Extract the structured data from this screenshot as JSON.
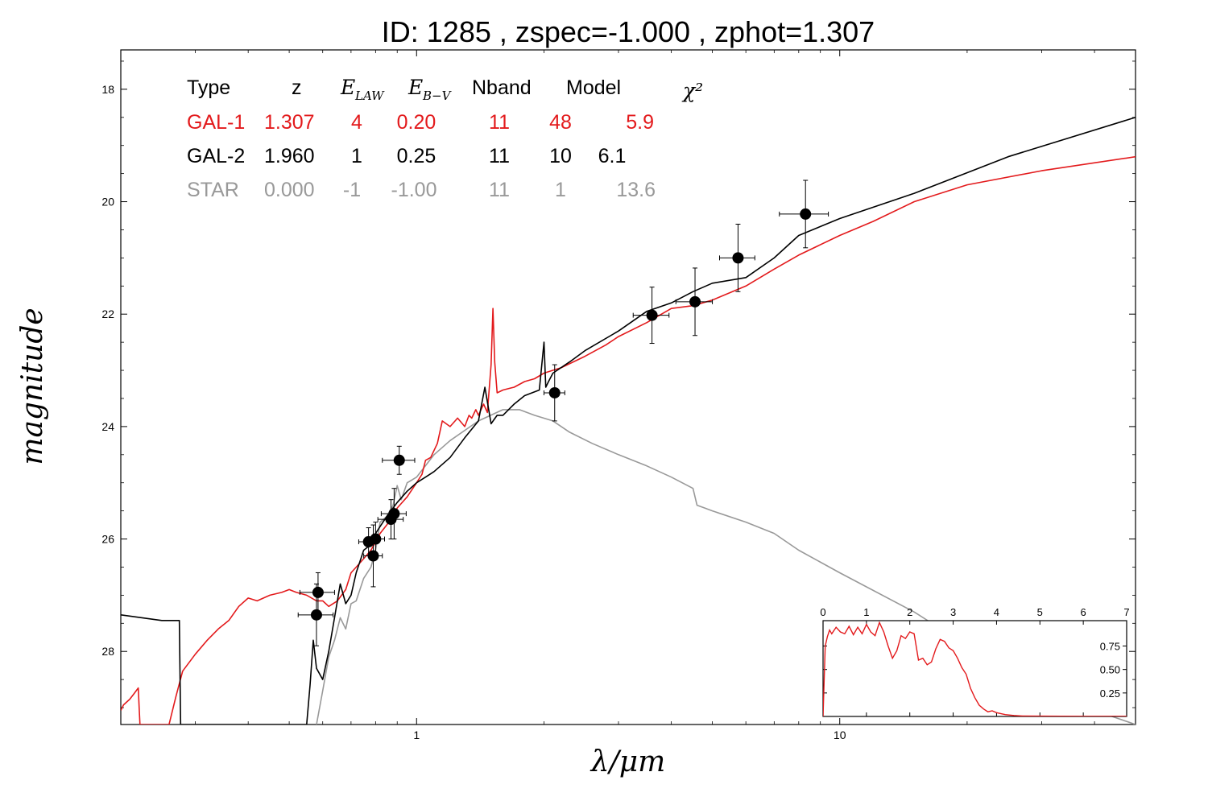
{
  "colors": {
    "gal1": "#e31a1c",
    "gal2": "#000000",
    "star": "#999999",
    "points": "#000000",
    "frame": "#000000"
  },
  "chart_data": [
    {
      "type": "line",
      "title": "ID:  1285  , zspec=-1.000 , zphot=1.307",
      "xlabel": "λ/μm",
      "ylabel": "magnitude",
      "x_scale": "log",
      "xlim": [
        0.2,
        50
      ],
      "ylim": [
        29.3,
        17.3
      ],
      "y_inverted": true,
      "grid": false,
      "x_ticks": [
        1,
        10
      ],
      "x_tick_labels": [
        "1",
        "10"
      ],
      "y_ticks": [
        18,
        20,
        22,
        24,
        26,
        28
      ],
      "y_tick_labels": [
        "18",
        "20",
        "22",
        "24",
        "26",
        "28"
      ],
      "legend_table": {
        "placement": "top-left",
        "headers": [
          "Type",
          "z",
          "E_LAW",
          "E_B-V",
          "Nband",
          "Model",
          "χ²"
        ],
        "rows": [
          {
            "cells": [
              "GAL-1",
              "1.307",
              "4",
              "0.20",
              "11",
              "48",
              "5.9"
            ],
            "color": "#e31a1c"
          },
          {
            "cells": [
              "GAL-2",
              "1.960",
              "1",
              "0.25",
              "11",
              "10",
              "6.1"
            ],
            "color": "#000000"
          },
          {
            "cells": [
              "STAR",
              "0.000",
              "-1",
              "-1.00",
              "11",
              "1",
              "13.6"
            ],
            "color": "#999999"
          }
        ]
      },
      "series": [
        {
          "key": "gal1",
          "color": "#e31a1c",
          "x": [
            0.2,
            0.203,
            0.21,
            0.215,
            0.22,
            0.221,
            0.222,
            0.26,
            0.27,
            0.28,
            0.3,
            0.32,
            0.34,
            0.36,
            0.38,
            0.4,
            0.42,
            0.45,
            0.48,
            0.5,
            0.52,
            0.55,
            0.58,
            0.6,
            0.62,
            0.65,
            0.68,
            0.7,
            0.72,
            0.75,
            0.78,
            0.8,
            0.82,
            0.85,
            0.88,
            0.9,
            0.95,
            1.0,
            1.03,
            1.05,
            1.08,
            1.12,
            1.15,
            1.2,
            1.25,
            1.3,
            1.33,
            1.35,
            1.38,
            1.4,
            1.44,
            1.47,
            1.5,
            1.515,
            1.53,
            1.55,
            1.6,
            1.7,
            1.8,
            1.9,
            2.0,
            2.2,
            2.5,
            2.8,
            3.0,
            3.5,
            4.0,
            4.5,
            5.0,
            6.0,
            7.0,
            8.0,
            10.0,
            12.0,
            15.0,
            20.0,
            30.0,
            50.0
          ],
          "y": [
            29.05,
            28.95,
            28.85,
            28.75,
            28.65,
            29.0,
            29.3,
            29.3,
            28.8,
            28.35,
            28.05,
            27.8,
            27.6,
            27.45,
            27.2,
            27.05,
            27.1,
            27.0,
            26.95,
            26.9,
            26.95,
            27.0,
            27.1,
            27.1,
            27.2,
            27.1,
            26.9,
            26.6,
            26.5,
            26.35,
            26.2,
            26.05,
            25.9,
            25.75,
            25.6,
            25.45,
            25.25,
            25.0,
            24.85,
            24.6,
            24.55,
            24.3,
            23.9,
            24.0,
            23.85,
            24.0,
            23.8,
            23.85,
            23.7,
            23.8,
            23.6,
            23.75,
            22.9,
            21.9,
            22.85,
            23.4,
            23.35,
            23.3,
            23.2,
            23.15,
            23.05,
            22.95,
            22.75,
            22.55,
            22.4,
            22.15,
            21.9,
            21.85,
            21.75,
            21.5,
            21.2,
            20.95,
            20.6,
            20.35,
            20.0,
            19.7,
            19.45,
            19.2
          ]
        },
        {
          "key": "gal2",
          "color": "#000000",
          "x": [
            0.2,
            0.25,
            0.27,
            0.275,
            0.277,
            0.55,
            0.56,
            0.57,
            0.58,
            0.6,
            0.62,
            0.64,
            0.66,
            0.68,
            0.7,
            0.72,
            0.75,
            0.78,
            0.8,
            0.85,
            0.9,
            0.95,
            1.0,
            1.05,
            1.1,
            1.2,
            1.3,
            1.4,
            1.45,
            1.5,
            1.55,
            1.6,
            1.7,
            1.8,
            1.95,
            2.0,
            2.02,
            2.05,
            2.1,
            2.3,
            2.5,
            3.0,
            3.5,
            4.0,
            4.5,
            5.0,
            6.0,
            7.0,
            8.0,
            10.0,
            15.0,
            25.0,
            50.0
          ],
          "y": [
            27.35,
            27.45,
            27.45,
            27.45,
            29.3,
            29.3,
            28.6,
            27.8,
            28.3,
            28.5,
            28.0,
            27.4,
            26.8,
            27.15,
            27.0,
            26.6,
            26.2,
            26.1,
            25.9,
            25.6,
            25.35,
            25.15,
            25.0,
            24.9,
            24.8,
            24.55,
            24.2,
            23.9,
            23.3,
            23.95,
            23.8,
            23.8,
            23.6,
            23.45,
            23.35,
            22.5,
            23.3,
            23.2,
            23.05,
            22.85,
            22.65,
            22.3,
            21.95,
            21.8,
            21.6,
            21.45,
            21.35,
            21.0,
            20.6,
            20.3,
            19.85,
            19.2,
            18.5
          ]
        },
        {
          "key": "star",
          "color": "#999999",
          "x": [
            0.58,
            0.6,
            0.62,
            0.64,
            0.66,
            0.68,
            0.7,
            0.72,
            0.75,
            0.78,
            0.8,
            0.82,
            0.85,
            0.88,
            0.9,
            0.92,
            0.95,
            1.0,
            1.1,
            1.2,
            1.4,
            1.6,
            1.75,
            1.9,
            2.1,
            2.3,
            2.6,
            3.0,
            3.5,
            4.0,
            4.5,
            4.6,
            4.8,
            5.0,
            6.0,
            7.0,
            8.0,
            10.0,
            15.0,
            20.0,
            30.0,
            40.0,
            50.0
          ],
          "y": [
            29.3,
            28.7,
            28.1,
            27.8,
            27.4,
            27.6,
            27.15,
            27.1,
            26.7,
            26.5,
            26.2,
            25.7,
            25.6,
            25.4,
            25.05,
            25.3,
            25.0,
            24.9,
            24.5,
            24.25,
            23.9,
            23.7,
            23.7,
            23.8,
            23.9,
            24.1,
            24.3,
            24.5,
            24.7,
            24.9,
            25.1,
            25.4,
            25.45,
            25.5,
            25.7,
            25.9,
            26.2,
            26.6,
            27.3,
            27.9,
            28.6,
            29.05,
            29.3
          ]
        }
      ],
      "points": {
        "x": [
          0.58,
          0.585,
          0.77,
          0.79,
          0.8,
          0.87,
          0.885,
          0.91,
          2.12,
          3.6,
          4.55,
          5.75,
          8.3
        ],
        "y": [
          27.35,
          26.95,
          26.05,
          26.3,
          26.0,
          25.65,
          25.55,
          24.6,
          23.4,
          22.02,
          21.78,
          21.0,
          20.22
        ],
        "x_err_low": [
          0.055,
          0.055,
          0.04,
          0.04,
          0.04,
          0.06,
          0.06,
          0.08,
          0.12,
          0.35,
          0.45,
          0.55,
          1.1
        ],
        "x_err_high": [
          0.055,
          0.055,
          0.04,
          0.04,
          0.04,
          0.06,
          0.06,
          0.08,
          0.12,
          0.35,
          0.45,
          0.55,
          1.1
        ],
        "y_err": [
          0.55,
          0.35,
          0.25,
          0.55,
          0.3,
          0.35,
          0.45,
          0.25,
          0.5,
          0.5,
          0.6,
          0.6,
          0.6
        ]
      }
    },
    {
      "type": "line",
      "title": "",
      "xlabel": "",
      "ylabel": "",
      "xlim": [
        0,
        7
      ],
      "ylim": [
        0,
        1.02
      ],
      "x_ticks": [
        0,
        1,
        2,
        3,
        4,
        5,
        6,
        7
      ],
      "x_tick_labels": [
        "0",
        "1",
        "2",
        "3",
        "4",
        "5",
        "6",
        "7"
      ],
      "y_ticks": [
        0.25,
        0.5,
        0.75
      ],
      "y_tick_labels": [
        "0.25",
        "0.50",
        "0.75"
      ],
      "series": [
        {
          "key": "pdz",
          "color": "#e31a1c",
          "x": [
            0,
            0.05,
            0.1,
            0.15,
            0.2,
            0.3,
            0.4,
            0.5,
            0.6,
            0.7,
            0.8,
            0.9,
            1.0,
            1.1,
            1.2,
            1.3,
            1.4,
            1.5,
            1.6,
            1.7,
            1.8,
            1.9,
            2.0,
            2.1,
            2.2,
            2.3,
            2.4,
            2.5,
            2.6,
            2.7,
            2.8,
            2.9,
            3.0,
            3.1,
            3.2,
            3.3,
            3.4,
            3.5,
            3.6,
            3.7,
            3.8,
            3.9,
            4.0,
            4.2,
            4.4,
            4.6,
            5.0,
            6.0,
            7.0
          ],
          "y": [
            0.0,
            0.75,
            0.85,
            0.92,
            0.88,
            0.95,
            0.9,
            0.88,
            0.96,
            0.87,
            0.95,
            0.88,
            0.98,
            0.9,
            0.86,
            1.0,
            0.9,
            0.75,
            0.62,
            0.7,
            0.86,
            0.83,
            0.9,
            0.88,
            0.6,
            0.62,
            0.55,
            0.58,
            0.72,
            0.82,
            0.8,
            0.73,
            0.7,
            0.62,
            0.52,
            0.45,
            0.3,
            0.2,
            0.12,
            0.08,
            0.05,
            0.06,
            0.04,
            0.02,
            0.01,
            0.005,
            0.003,
            0.002,
            0.002
          ]
        }
      ]
    }
  ]
}
